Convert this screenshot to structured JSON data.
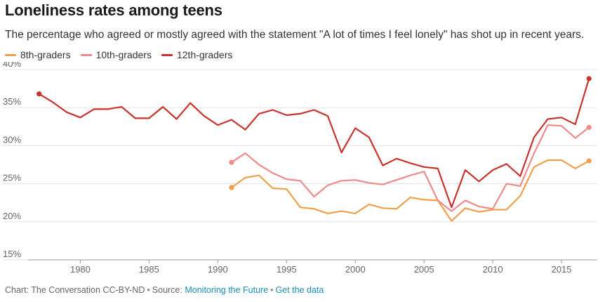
{
  "header": {
    "title": "Loneliness rates among teens",
    "subtitle": "The percentage who agreed or mostly agreed with the statement \"A lot of times I feel lonely\" has shot up in recent years."
  },
  "footer": {
    "credit": "Chart: The Conversation CC-BY-ND",
    "source_prefix": "Source:",
    "source_link": "Monitoring the Future",
    "data_link": "Get the data"
  },
  "chart_data": {
    "type": "line",
    "title": "Loneliness rates among teens",
    "xlim": [
      1976.2,
      2017.6
    ],
    "ylim": [
      15,
      40
    ],
    "x_ticks": [
      1980,
      1985,
      1990,
      1995,
      2000,
      2005,
      2010,
      2015
    ],
    "y_ticks": [
      15,
      20,
      25,
      30,
      35,
      40
    ],
    "y_tick_labels": [
      "15%",
      "20%",
      "25%",
      "30%",
      "35%",
      "40%"
    ],
    "grid": true,
    "legend_position": "top-left",
    "series": [
      {
        "name": "8th-graders",
        "color": "#f0a04b",
        "x": [
          1991,
          1992,
          1993,
          1994,
          1995,
          1996,
          1997,
          1998,
          1999,
          2000,
          2001,
          2002,
          2003,
          2004,
          2005,
          2006,
          2007,
          2008,
          2009,
          2010,
          2011,
          2012,
          2013,
          2014,
          2015,
          2016,
          2017
        ],
        "y": [
          24.5,
          25.8,
          26.1,
          24.4,
          24.3,
          21.9,
          21.7,
          21.1,
          21.4,
          21.1,
          22.3,
          21.8,
          21.7,
          23.2,
          22.9,
          22.8,
          20.1,
          21.8,
          21.3,
          21.6,
          21.6,
          23.4,
          27.2,
          28.1,
          28.1,
          27.0,
          28.0
        ]
      },
      {
        "name": "10th-graders",
        "color": "#f08a8a",
        "x": [
          1991,
          1992,
          1993,
          1994,
          1995,
          1996,
          1997,
          1998,
          1999,
          2000,
          2001,
          2002,
          2003,
          2004,
          2005,
          2006,
          2007,
          2008,
          2009,
          2010,
          2011,
          2012,
          2013,
          2014,
          2015,
          2016,
          2017
        ],
        "y": [
          27.8,
          29.0,
          27.5,
          26.4,
          25.6,
          25.4,
          23.3,
          24.8,
          25.4,
          25.5,
          25.1,
          24.9,
          25.5,
          26.1,
          26.6,
          22.8,
          21.4,
          22.8,
          22.0,
          21.7,
          25.0,
          24.7,
          29.0,
          32.7,
          32.6,
          31.0,
          32.4
        ]
      },
      {
        "name": "12th-graders",
        "color": "#c8342c",
        "x": [
          1977,
          1978,
          1979,
          1980,
          1981,
          1982,
          1983,
          1984,
          1985,
          1986,
          1987,
          1988,
          1989,
          1990,
          1991,
          1992,
          1993,
          1994,
          1995,
          1996,
          1997,
          1998,
          1999,
          2000,
          2001,
          2002,
          2003,
          2004,
          2005,
          2006,
          2007,
          2008,
          2009,
          2010,
          2011,
          2012,
          2013,
          2014,
          2015,
          2016,
          2017
        ],
        "y": [
          36.8,
          35.7,
          34.4,
          33.7,
          34.8,
          34.8,
          35.1,
          33.6,
          33.6,
          35.1,
          33.5,
          35.6,
          33.9,
          32.7,
          33.4,
          32.1,
          34.2,
          34.7,
          34.0,
          34.2,
          34.7,
          33.9,
          29.1,
          32.3,
          31.1,
          27.4,
          28.3,
          27.7,
          27.2,
          27.0,
          21.9,
          26.8,
          25.3,
          26.8,
          27.6,
          26.0,
          31.1,
          33.5,
          33.7,
          32.8,
          38.8
        ]
      }
    ]
  }
}
